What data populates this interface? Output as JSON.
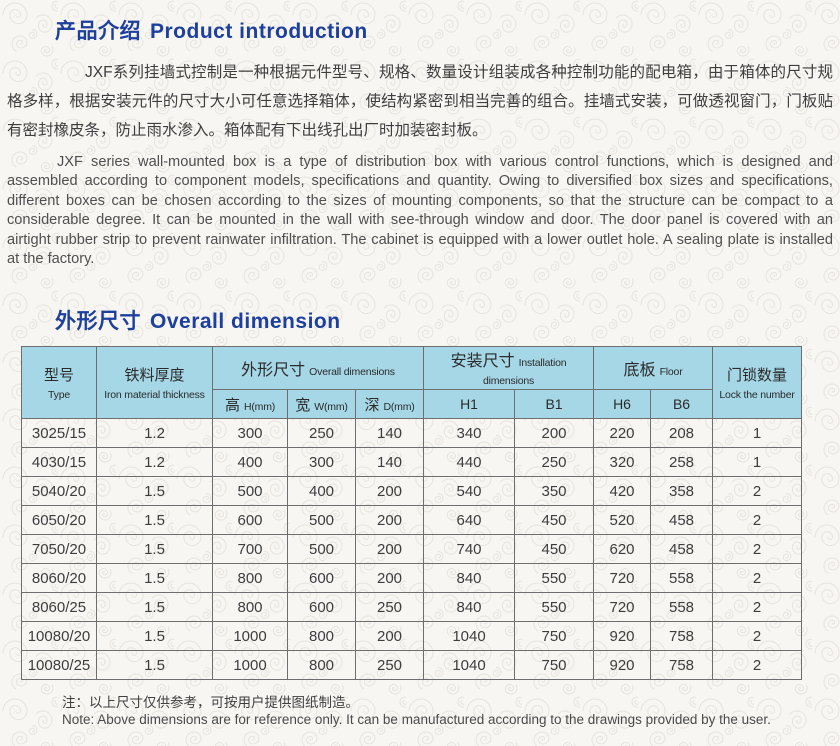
{
  "page": {
    "bg_color": "#f8f6f3",
    "pattern_color": "#e7e3dd",
    "accent_blue": "#1d3f9d",
    "table_header_bg": "#a5d7e7",
    "table_border": "#6e6e6e"
  },
  "section_intro": {
    "title_zh": "产品介绍",
    "title_en": "Product introduction",
    "para_zh": "JXF系列挂墙式控制是一种根据元件型号、规格、数量设计组装成各种控制功能的配电箱，由于箱体的尺寸规格多样，根据安装元件的尺寸大小可任意选择箱体，使结构紧密到相当完善的组合。挂墙式安装，可做透视窗门，门板贴有密封橡皮条，防止雨水渗入。箱体配有下出线孔出厂时加装密封板。",
    "para_en": "JXF series wall-mounted box is a type of distribution box with various control functions, which is designed and assembled according to component models, specifications and quantity. Owing to diversified box sizes and specifications, different boxes can be chosen according to the sizes of mounting components, so that the structure can be compact to a considerable degree. It can be mounted in the wall with see-through window and door. The door panel is covered with an airtight rubber strip to prevent rainwater infiltration. The cabinet is equipped with a lower outlet hole. A sealing plate is installed at the factory."
  },
  "section_dimension": {
    "title_zh": "外形尺寸",
    "title_en": "Overall dimension"
  },
  "table": {
    "header": {
      "type_zh": "型号",
      "type_en": "Type",
      "iron_zh": "铁料厚度",
      "iron_en": "Iron material thickness",
      "overall_zh": "外形尺寸",
      "overall_en": "Overall dimensions",
      "col_h_zh": "高",
      "col_h_en": "H(mm)",
      "col_w_zh": "宽",
      "col_w_en": "W(mm)",
      "col_d_zh": "深",
      "col_d_en": "D(mm)",
      "install_zh": "安装尺寸",
      "install_en": "Installation dimensions",
      "h1": "H1",
      "b1": "B1",
      "floor_zh": "底板",
      "floor_en": "Floor",
      "h6": "H6",
      "b6": "B6",
      "lock_zh": "门锁数量",
      "lock_en": "Lock the number"
    },
    "rows": [
      [
        "3025/15",
        "1.2",
        "300",
        "250",
        "140",
        "340",
        "200",
        "220",
        "208",
        "1"
      ],
      [
        "4030/15",
        "1.2",
        "400",
        "300",
        "140",
        "440",
        "250",
        "320",
        "258",
        "1"
      ],
      [
        "5040/20",
        "1.5",
        "500",
        "400",
        "200",
        "540",
        "350",
        "420",
        "358",
        "2"
      ],
      [
        "6050/20",
        "1.5",
        "600",
        "500",
        "200",
        "640",
        "450",
        "520",
        "458",
        "2"
      ],
      [
        "7050/20",
        "1.5",
        "700",
        "500",
        "200",
        "740",
        "450",
        "620",
        "458",
        "2"
      ],
      [
        "8060/20",
        "1.5",
        "800",
        "600",
        "200",
        "840",
        "550",
        "720",
        "558",
        "2"
      ],
      [
        "8060/25",
        "1.5",
        "800",
        "600",
        "250",
        "840",
        "550",
        "720",
        "558",
        "2"
      ],
      [
        "10080/20",
        "1.5",
        "1000",
        "800",
        "200",
        "1040",
        "750",
        "920",
        "758",
        "2"
      ],
      [
        "10080/25",
        "1.5",
        "1000",
        "800",
        "250",
        "1040",
        "750",
        "920",
        "758",
        "2"
      ]
    ]
  },
  "note": {
    "zh": "注：以上尺寸仅供参考，可按用户提供图纸制造。",
    "en": "Note: Above dimensions are for reference only. It can be manufactured according to the drawings provided by the user."
  }
}
